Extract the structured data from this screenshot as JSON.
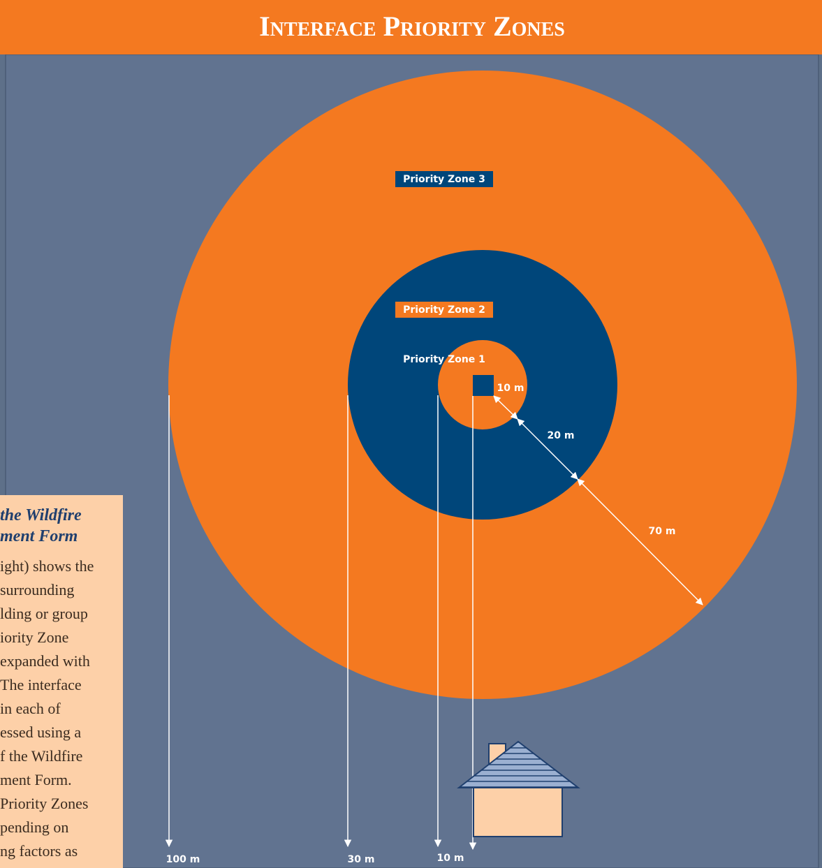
{
  "header": {
    "title": "Interface Priority Zones"
  },
  "zones": [
    {
      "label": "Priority Zone 1"
    },
    {
      "label": "Priority Zone 2"
    },
    {
      "label": "Priority Zone 3"
    }
  ],
  "distances": [
    "10 m",
    "20 m",
    "70 m"
  ],
  "axis_labels": [
    "100 m",
    "30 m",
    "10 m"
  ],
  "sidebar": {
    "heading": [
      "the Wildfire",
      "ment Form"
    ],
    "lines": [
      "ight) shows the",
      "surrounding",
      "lding or group",
      "iority Zone",
      "expanded with",
      "The interface",
      "in each of",
      "essed using a",
      "f the Wildfire",
      "ment Form.",
      "Priority Zones",
      "pending on",
      "ng factors as"
    ]
  }
}
